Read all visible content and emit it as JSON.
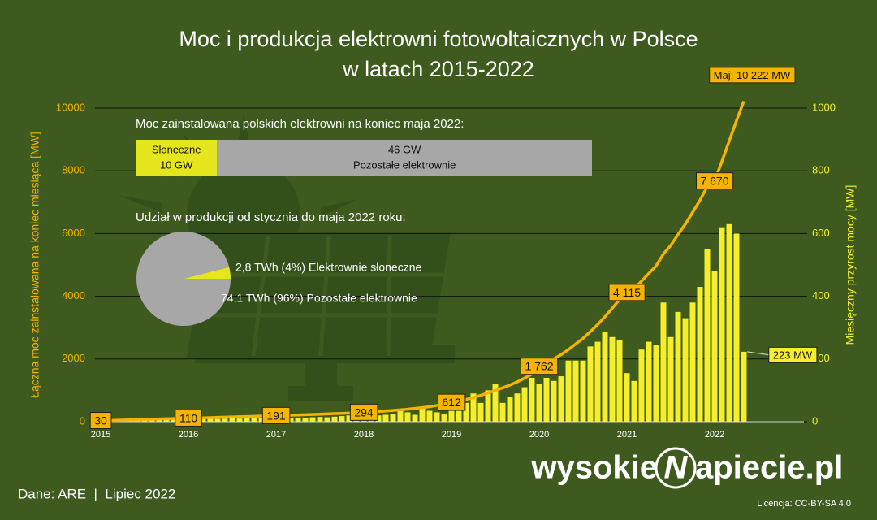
{
  "chart_data": [
    {
      "type": "combo",
      "title": "Moc i produkcja elektrowni fotowoltaicznych w Polsce",
      "subtitle": "w latach 2015-2022",
      "y_label": "Łączna moc zainstalowana na koniec miesiąca [MW]",
      "y2_label": "Miesięczny przyrost mocy [MW]",
      "categories": [
        "2015",
        null,
        null,
        null,
        null,
        null,
        null,
        null,
        null,
        null,
        null,
        null,
        "2016",
        null,
        null,
        null,
        null,
        null,
        null,
        null,
        null,
        null,
        null,
        null,
        "2017",
        null,
        null,
        null,
        null,
        null,
        null,
        null,
        null,
        null,
        null,
        null,
        "2018",
        null,
        null,
        null,
        null,
        null,
        null,
        null,
        null,
        null,
        null,
        null,
        "2019",
        null,
        null,
        null,
        null,
        null,
        null,
        null,
        null,
        null,
        null,
        null,
        "2020",
        null,
        null,
        null,
        null,
        null,
        null,
        null,
        null,
        null,
        null,
        null,
        "2021",
        null,
        null,
        null,
        null,
        null,
        null,
        null,
        null,
        null,
        null,
        null,
        "2022",
        null,
        null,
        null,
        null
      ],
      "ylim": [
        0,
        10000
      ],
      "yticks": [
        0,
        2000,
        4000,
        6000,
        8000,
        10000
      ],
      "y2lim": [
        0,
        1000
      ],
      "y2ticks": [
        0,
        200,
        400,
        600,
        800,
        1000
      ],
      "grid": true,
      "series": [
        {
          "type": "bar",
          "axis": "y2",
          "color": "#f4ef2a",
          "values": [
            5,
            6,
            5,
            6,
            7,
            6,
            7,
            8,
            7,
            8,
            9,
            10,
            8,
            8,
            9,
            10,
            9,
            10,
            11,
            10,
            12,
            12,
            13,
            14,
            10,
            11,
            12,
            13,
            12,
            14,
            15,
            14,
            16,
            18,
            20,
            22,
            15,
            18,
            20,
            22,
            25,
            40,
            30,
            22,
            45,
            35,
            30,
            25,
            50,
            40,
            60,
            90,
            60,
            100,
            120,
            60,
            80,
            90,
            110,
            140,
            120,
            140,
            130,
            145,
            195,
            195,
            195,
            240,
            255,
            285,
            270,
            260,
            155,
            130,
            230,
            255,
            245,
            380,
            270,
            350,
            330,
            380,
            430,
            550,
            480,
            620,
            630,
            600,
            223
          ],
          "value_labels": [
            null,
            null,
            null,
            null,
            null,
            null,
            null,
            null,
            null,
            null,
            null,
            null,
            null,
            null,
            null,
            null,
            null,
            null,
            null,
            null,
            null,
            null,
            null,
            null,
            null,
            null,
            null,
            null,
            null,
            null,
            null,
            null,
            null,
            null,
            null,
            null,
            null,
            null,
            null,
            null,
            null,
            null,
            null,
            null,
            null,
            null,
            null,
            null,
            null,
            null,
            null,
            null,
            null,
            null,
            null,
            null,
            null,
            null,
            null,
            null,
            null,
            null,
            null,
            null,
            null,
            null,
            null,
            null,
            null,
            null,
            null,
            null,
            null,
            null,
            null,
            null,
            null,
            null,
            null,
            null,
            null,
            null,
            null,
            null,
            null,
            null,
            null,
            null,
            "223 MW"
          ]
        },
        {
          "type": "line",
          "axis": "y",
          "color": "#f5b400",
          "values": [
            30,
            37,
            44,
            51,
            58,
            65,
            72,
            79,
            86,
            93,
            101,
            108,
            110,
            117,
            124,
            131,
            138,
            145,
            152,
            159,
            166,
            173,
            180,
            187,
            191,
            199,
            207,
            215,
            223,
            231,
            240,
            249,
            258,
            267,
            276,
            285,
            294,
            310,
            326,
            343,
            360,
            380,
            400,
            425,
            450,
            480,
            520,
            570,
            612,
            660,
            710,
            770,
            840,
            920,
            1000,
            1080,
            1170,
            1270,
            1390,
            1520,
            1762,
            1880,
            2000,
            2140,
            2300,
            2480,
            2660,
            2870,
            3100,
            3350,
            3620,
            3900,
            4115,
            4250,
            4480,
            4730,
            4970,
            5350,
            5620,
            5970,
            6300,
            6680,
            7060,
            7500,
            7670,
            8300,
            8950,
            9600,
            10222
          ],
          "value_labels": [
            "30",
            null,
            null,
            null,
            null,
            null,
            null,
            null,
            null,
            null,
            null,
            null,
            "110",
            null,
            null,
            null,
            null,
            null,
            null,
            null,
            null,
            null,
            null,
            null,
            "191",
            null,
            null,
            null,
            null,
            null,
            null,
            null,
            null,
            null,
            null,
            null,
            "294",
            null,
            null,
            null,
            null,
            null,
            null,
            null,
            null,
            null,
            null,
            null,
            "612",
            null,
            null,
            null,
            null,
            null,
            null,
            null,
            null,
            null,
            null,
            null,
            "1 762",
            null,
            null,
            null,
            null,
            null,
            null,
            null,
            null,
            null,
            null,
            null,
            "4 115",
            null,
            null,
            null,
            null,
            null,
            null,
            null,
            null,
            null,
            null,
            null,
            "7 670",
            null,
            null,
            null,
            "Maj: 10 222 MW"
          ]
        }
      ]
    },
    {
      "type": "stacked-bar",
      "title": "Moc zainstalowana polskich elektrowni na koniec maja 2022:",
      "series": [
        {
          "name": "Słoneczne",
          "color": "#e6e61e",
          "values": [
            10
          ],
          "value_labels": [
            "10 GW"
          ]
        },
        {
          "name": "Pozostałe elektrownie",
          "color": "#a7a7a7",
          "values": [
            46
          ],
          "value_labels": [
            "46 GW"
          ]
        }
      ]
    },
    {
      "type": "pie",
      "title": "Udział w produkcji od stycznia do maja 2022 roku:",
      "values": [
        4,
        96
      ],
      "colors": [
        "#e6e61e",
        "#a7a7a7"
      ],
      "labels": [
        "2,8 TWh (4%) Elektrownie słoneczne",
        "74,1 TWh (96%) Pozostałe elektrownie"
      ]
    }
  ],
  "footer": {
    "source": "Dane: ARE  |  Lipiec 2022",
    "logo_left": "wysokie",
    "logo_mark": "N",
    "logo_right": "apiecie.pl",
    "license": "Licencja: CC-BY-SA 4.0"
  }
}
